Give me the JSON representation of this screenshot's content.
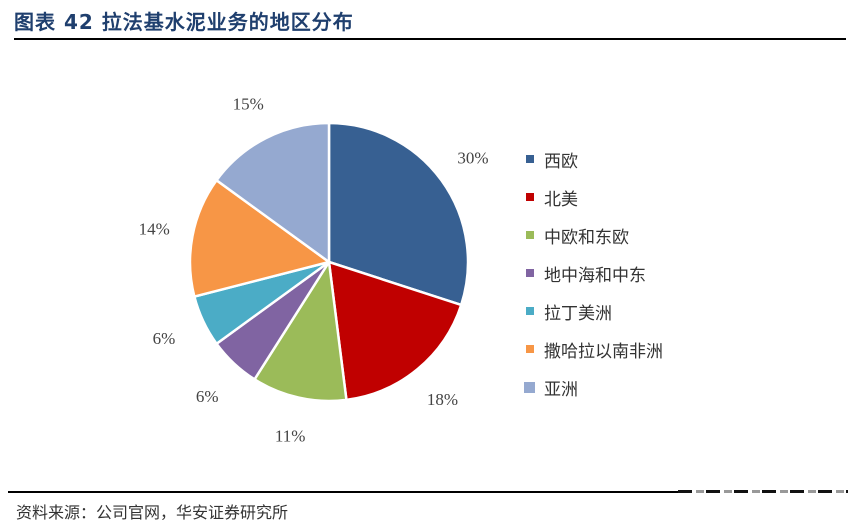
{
  "header": {
    "title": "图表 42 拉法基水泥业务的地区分布"
  },
  "footer": {
    "source": "资料来源：公司官网，华安证券研究所"
  },
  "chart_data": {
    "type": "pie",
    "title": "拉法基水泥业务的地区分布",
    "categories": [
      "西欧",
      "北美",
      "中欧和东欧",
      "地中海和中东",
      "拉丁美洲",
      "撒哈拉以南非洲",
      "亚洲"
    ],
    "values": [
      30,
      18,
      11,
      6,
      6,
      14,
      15
    ],
    "labels": [
      "30%",
      "18%",
      "11%",
      "6%",
      "6%",
      "14%",
      "15%"
    ],
    "colors": [
      "#376092",
      "#c00000",
      "#9bbb59",
      "#8064a2",
      "#4bacc6",
      "#f79646",
      "#95a9d0"
    ],
    "legend_position": "right",
    "start_angle": "12 o'clock, clockwise"
  }
}
